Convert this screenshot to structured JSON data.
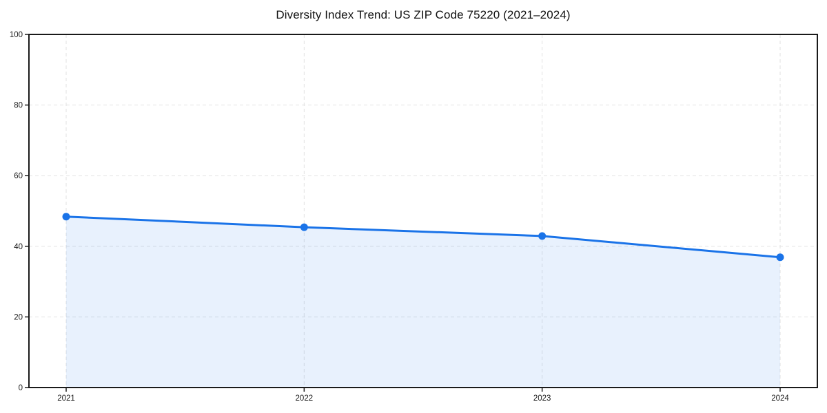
{
  "page": {
    "background": "#ffffff"
  },
  "chart_data": {
    "type": "line",
    "title": "Diversity Index Trend: US ZIP Code 75220 (2021–2024)",
    "x": [
      2021,
      2022,
      2023,
      2024
    ],
    "xticks": [
      "2021",
      "2022",
      "2023",
      "2024"
    ],
    "series": [
      {
        "name": "Diversity Index",
        "values": [
          48.4,
          45.4,
          42.9,
          36.9
        ]
      }
    ],
    "xlabel": "",
    "ylabel": "",
    "ylim": [
      0,
      100
    ],
    "yticks": [
      0,
      20,
      40,
      60,
      80,
      100
    ],
    "grid": true,
    "grid_style": "dashed",
    "legend": "none",
    "area_fill": true,
    "colors": {
      "line": "#1a73e8",
      "marker": "#1a73e8",
      "fill": "rgba(26,115,232,0.10)",
      "grid": "#e2e2e2",
      "axis": "#1a1a1a",
      "tick_label": "#1a1a1a",
      "title": "#111111"
    }
  }
}
